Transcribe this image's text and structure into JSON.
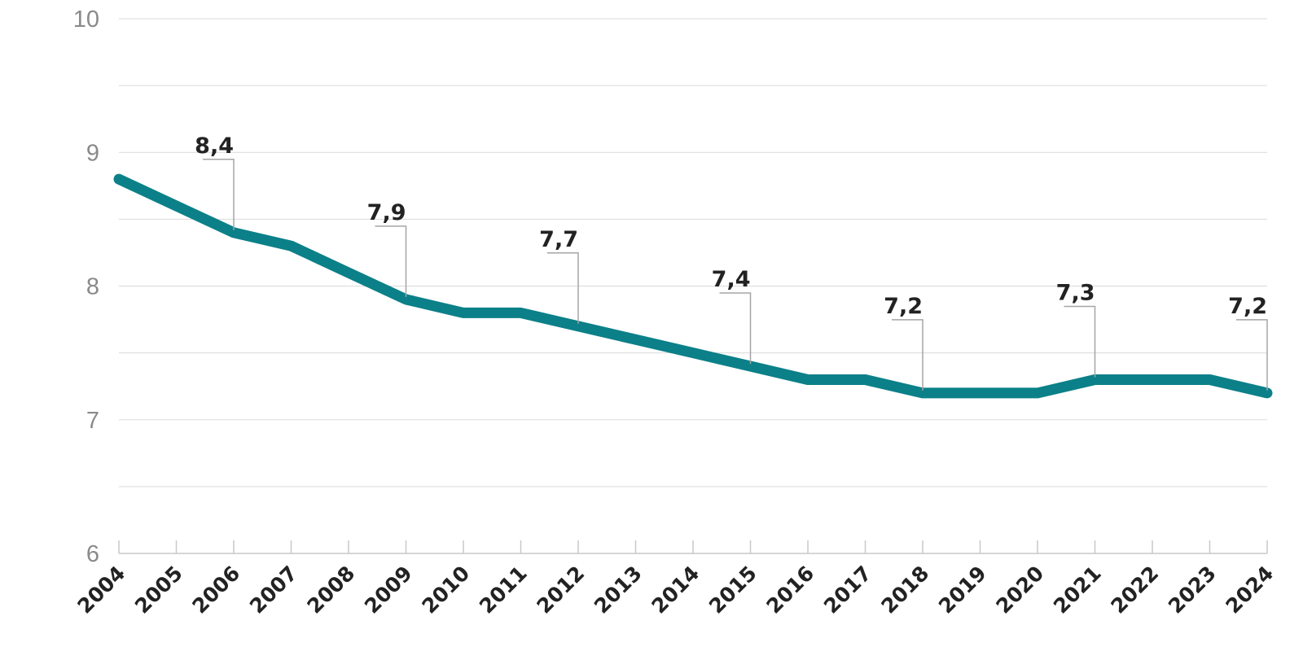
{
  "chart_data": {
    "type": "line",
    "title": "",
    "xlabel": "",
    "ylabel": "",
    "x": [
      "2004",
      "2005",
      "2006",
      "2007",
      "2008",
      "2009",
      "2010",
      "2011",
      "2012",
      "2013",
      "2014",
      "2015",
      "2016",
      "2017",
      "2018",
      "2019",
      "2020",
      "2021",
      "2022",
      "2023",
      "2024"
    ],
    "series": [
      {
        "values": [
          8.8,
          8.6,
          8.4,
          8.3,
          8.1,
          7.9,
          7.8,
          7.8,
          7.7,
          7.6,
          7.5,
          7.4,
          7.3,
          7.3,
          7.2,
          7.2,
          7.2,
          7.3,
          7.3,
          7.3,
          7.2
        ],
        "color": "#0b8088"
      }
    ],
    "ylim": [
      6,
      10
    ],
    "yticks": [
      6,
      7,
      8,
      9,
      10
    ],
    "grid": true,
    "annotations": [
      {
        "x": "2006",
        "y": 8.4,
        "label": "8,4"
      },
      {
        "x": "2009",
        "y": 7.9,
        "label": "7,9"
      },
      {
        "x": "2012",
        "y": 7.7,
        "label": "7,7"
      },
      {
        "x": "2015",
        "y": 7.4,
        "label": "7,4"
      },
      {
        "x": "2018",
        "y": 7.2,
        "label": "7,2"
      },
      {
        "x": "2021",
        "y": 7.3,
        "label": "7,3"
      },
      {
        "x": "2024",
        "y": 7.2,
        "label": "7,2"
      }
    ]
  }
}
